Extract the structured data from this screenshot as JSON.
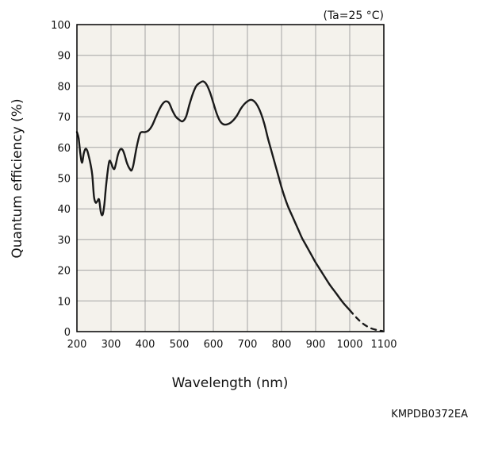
{
  "chart_data": {
    "type": "line",
    "title": "",
    "condition": "(Ta=25 °C)",
    "xlabel": "Wavelength (nm)",
    "ylabel": "Quantum efficiency (%)",
    "xlim": [
      200,
      1100
    ],
    "ylim": [
      0,
      100
    ],
    "x_ticks": [
      200,
      300,
      400,
      500,
      600,
      700,
      800,
      900,
      1000,
      1100
    ],
    "y_ticks": [
      0,
      10,
      20,
      30,
      40,
      50,
      60,
      70,
      80,
      90,
      100
    ],
    "grid": true,
    "series": [
      {
        "name": "",
        "line_style": "solid",
        "points": [
          [
            200,
            65
          ],
          [
            205,
            63
          ],
          [
            210,
            58
          ],
          [
            215,
            55
          ],
          [
            220,
            58
          ],
          [
            225,
            59.5
          ],
          [
            230,
            59
          ],
          [
            235,
            57
          ],
          [
            240,
            54.5
          ],
          [
            245,
            51
          ],
          [
            250,
            44
          ],
          [
            255,
            42
          ],
          [
            260,
            42.5
          ],
          [
            265,
            43
          ],
          [
            270,
            39
          ],
          [
            275,
            38
          ],
          [
            280,
            41
          ],
          [
            285,
            47
          ],
          [
            290,
            52
          ],
          [
            295,
            55.5
          ],
          [
            300,
            55
          ],
          [
            305,
            53.5
          ],
          [
            310,
            53
          ],
          [
            315,
            55
          ],
          [
            320,
            57.5
          ],
          [
            325,
            59
          ],
          [
            330,
            59.5
          ],
          [
            335,
            59
          ],
          [
            340,
            57.5
          ],
          [
            345,
            55.5
          ],
          [
            350,
            54
          ],
          [
            355,
            53
          ],
          [
            360,
            52.5
          ],
          [
            365,
            54
          ],
          [
            370,
            57
          ],
          [
            375,
            60
          ],
          [
            380,
            62.5
          ],
          [
            385,
            64.5
          ],
          [
            390,
            65
          ],
          [
            400,
            65
          ],
          [
            410,
            65.5
          ],
          [
            420,
            67
          ],
          [
            430,
            69.5
          ],
          [
            440,
            72
          ],
          [
            450,
            74
          ],
          [
            460,
            75
          ],
          [
            470,
            74.5
          ],
          [
            480,
            72
          ],
          [
            490,
            70
          ],
          [
            500,
            69
          ],
          [
            510,
            68.5
          ],
          [
            520,
            70
          ],
          [
            530,
            74
          ],
          [
            540,
            77.5
          ],
          [
            550,
            80
          ],
          [
            560,
            81
          ],
          [
            570,
            81.5
          ],
          [
            580,
            80.5
          ],
          [
            590,
            78
          ],
          [
            600,
            74.5
          ],
          [
            610,
            71
          ],
          [
            620,
            68.5
          ],
          [
            630,
            67.5
          ],
          [
            640,
            67.5
          ],
          [
            650,
            68
          ],
          [
            660,
            69
          ],
          [
            670,
            70.5
          ],
          [
            680,
            72.5
          ],
          [
            690,
            74
          ],
          [
            700,
            75
          ],
          [
            710,
            75.5
          ],
          [
            720,
            75
          ],
          [
            730,
            73.5
          ],
          [
            740,
            71
          ],
          [
            750,
            67.5
          ],
          [
            760,
            63
          ],
          [
            770,
            59
          ],
          [
            780,
            55
          ],
          [
            790,
            51
          ],
          [
            800,
            47
          ],
          [
            810,
            43.5
          ],
          [
            820,
            40.5
          ],
          [
            830,
            38
          ],
          [
            840,
            35.5
          ],
          [
            850,
            33
          ],
          [
            860,
            30.5
          ],
          [
            870,
            28.5
          ],
          [
            880,
            26.5
          ],
          [
            890,
            24.5
          ],
          [
            900,
            22.5
          ],
          [
            920,
            19
          ],
          [
            940,
            15.5
          ],
          [
            960,
            12.5
          ],
          [
            980,
            9.5
          ],
          [
            1000,
            7
          ]
        ]
      },
      {
        "name": "",
        "line_style": "dashed",
        "points": [
          [
            1000,
            7
          ],
          [
            1020,
            4.5
          ],
          [
            1040,
            2.5
          ],
          [
            1060,
            1.2
          ],
          [
            1080,
            0.5
          ],
          [
            1095,
            0.2
          ]
        ]
      }
    ]
  },
  "figure_code": "KMPDB0372EA",
  "colors": {
    "plot_background": "#f4f2ec",
    "grid": "#a4a4a4",
    "axis": "#000000",
    "line": "#1a1a1a"
  }
}
